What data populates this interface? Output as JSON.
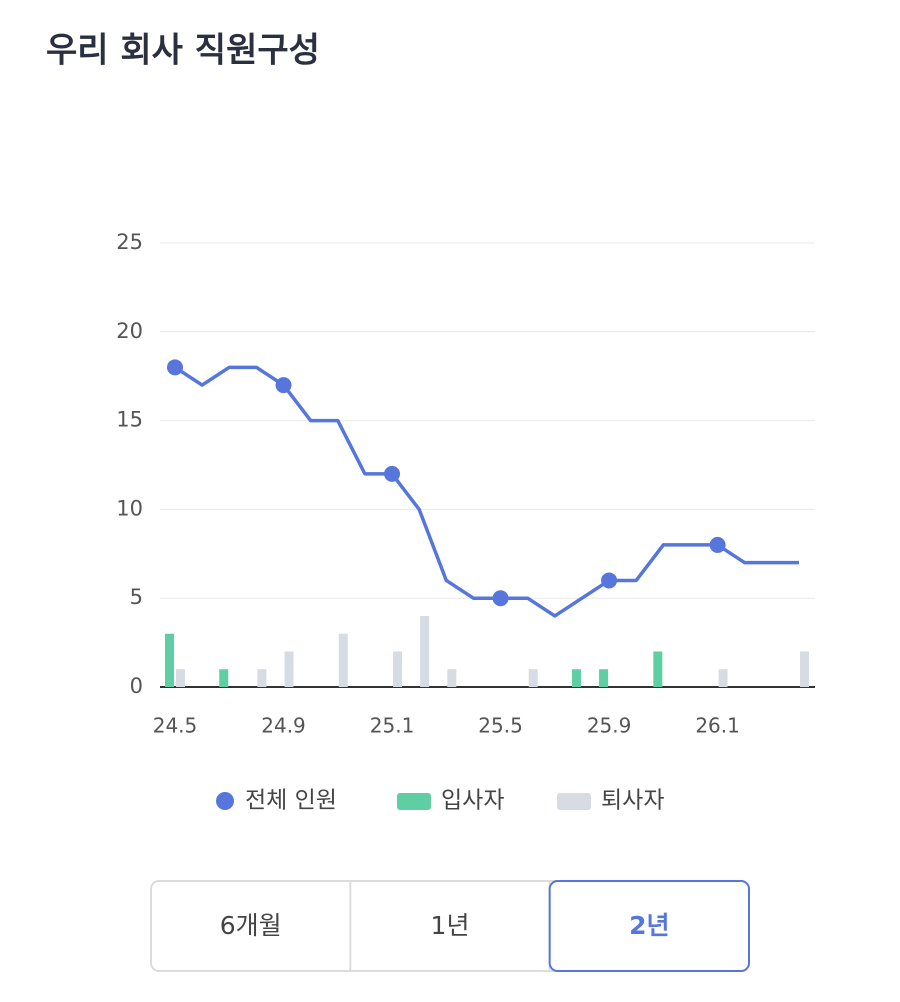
{
  "title": "우리 회사 직원구성",
  "chart_data": {
    "type": "combo",
    "categories": [
      "24.5",
      null,
      null,
      null,
      "24.9",
      null,
      null,
      null,
      "25.1",
      null,
      null,
      null,
      "25.5",
      null,
      null,
      null,
      "25.9",
      null,
      null,
      null,
      "26.1",
      null,
      null,
      null
    ],
    "series": [
      {
        "name": "전체 인원",
        "type": "line",
        "color": "#5676dc",
        "values": [
          18,
          17,
          18,
          18,
          17,
          15,
          15,
          12,
          12,
          10,
          6,
          5,
          5,
          5,
          4,
          5,
          6,
          6,
          8,
          8,
          8,
          7,
          7,
          7
        ]
      },
      {
        "name": "입사자",
        "type": "bar",
        "color": "#5fcea3",
        "values": [
          3,
          0,
          1,
          0,
          0,
          0,
          0,
          0,
          0,
          0,
          0,
          0,
          0,
          0,
          0,
          1,
          1,
          0,
          2,
          0,
          0,
          0,
          0,
          0
        ]
      },
      {
        "name": "퇴사자",
        "type": "bar",
        "color": "#d7dbe3",
        "values": [
          1,
          0,
          0,
          1,
          2,
          0,
          3,
          0,
          2,
          4,
          1,
          0,
          0,
          1,
          0,
          0,
          0,
          0,
          0,
          0,
          1,
          0,
          0,
          2
        ]
      }
    ],
    "ylim": [
      0,
      25
    ],
    "yticks": [
      0,
      5,
      10,
      15,
      20,
      25
    ],
    "grid": true
  },
  "tabs": {
    "options": [
      "6개월",
      "1년",
      "2년"
    ],
    "selected": 2
  }
}
